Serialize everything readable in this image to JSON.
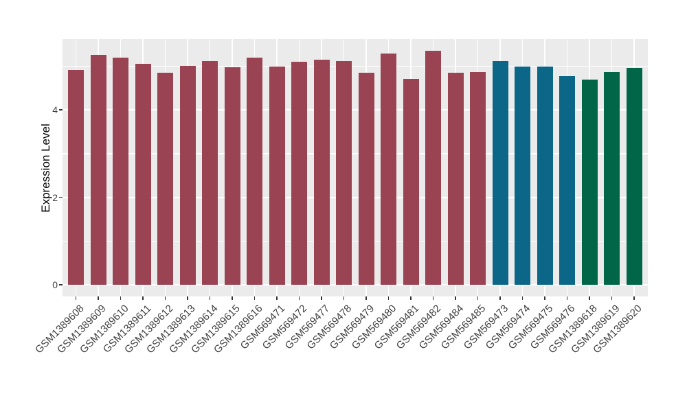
{
  "chart_data": {
    "type": "bar",
    "title": "",
    "xlabel": "",
    "ylabel": "Expression Level",
    "yticks": [
      0,
      2,
      4
    ],
    "ytick_labels": [
      "0",
      "2",
      "4"
    ],
    "ylim": [
      0,
      5.62
    ],
    "grid": true,
    "legend": false,
    "plot_background": "#EBEBEB",
    "gridline_color": "#FFFFFF",
    "axis_text_color": "#404040",
    "bars": [
      {
        "label": "GSM1389608",
        "value": 4.91,
        "color": "#9A4352"
      },
      {
        "label": "GSM1389609",
        "value": 5.25,
        "color": "#9A4352"
      },
      {
        "label": "GSM1389610",
        "value": 5.2,
        "color": "#9A4352"
      },
      {
        "label": "GSM1389611",
        "value": 5.05,
        "color": "#9A4352"
      },
      {
        "label": "GSM1389612",
        "value": 4.84,
        "color": "#9A4352"
      },
      {
        "label": "GSM1389613",
        "value": 5.01,
        "color": "#9A4352"
      },
      {
        "label": "GSM1389614",
        "value": 5.11,
        "color": "#9A4352"
      },
      {
        "label": "GSM1389615",
        "value": 4.97,
        "color": "#9A4352"
      },
      {
        "label": "GSM1389616",
        "value": 5.19,
        "color": "#9A4352"
      },
      {
        "label": "GSM569471",
        "value": 4.99,
        "color": "#9A4352"
      },
      {
        "label": "GSM569472",
        "value": 5.1,
        "color": "#9A4352"
      },
      {
        "label": "GSM569477",
        "value": 5.15,
        "color": "#9A4352"
      },
      {
        "label": "GSM569478",
        "value": 5.12,
        "color": "#9A4352"
      },
      {
        "label": "GSM569479",
        "value": 4.85,
        "color": "#9A4352"
      },
      {
        "label": "GSM569480",
        "value": 5.29,
        "color": "#9A4352"
      },
      {
        "label": "GSM569481",
        "value": 4.71,
        "color": "#9A4352"
      },
      {
        "label": "GSM569482",
        "value": 5.35,
        "color": "#9A4352"
      },
      {
        "label": "GSM569484",
        "value": 4.85,
        "color": "#9A4352"
      },
      {
        "label": "GSM569485",
        "value": 4.86,
        "color": "#9A4352"
      },
      {
        "label": "GSM569473",
        "value": 5.11,
        "color": "#0B6687"
      },
      {
        "label": "GSM569474",
        "value": 4.99,
        "color": "#0B6687"
      },
      {
        "label": "GSM569475",
        "value": 4.99,
        "color": "#0B6687"
      },
      {
        "label": "GSM569476",
        "value": 4.77,
        "color": "#0B6687"
      },
      {
        "label": "GSM1389618",
        "value": 4.69,
        "color": "#006647"
      },
      {
        "label": "GSM1389619",
        "value": 4.87,
        "color": "#006647"
      },
      {
        "label": "GSM1389620",
        "value": 4.95,
        "color": "#006647"
      }
    ],
    "color_groups": [
      {
        "color": "#9A4352",
        "first": "GSM1389608",
        "last": "GSM569485",
        "count": 19
      },
      {
        "color": "#0B6687",
        "first": "GSM569473",
        "last": "GSM569476",
        "count": 4
      },
      {
        "color": "#006647",
        "first": "GSM1389618",
        "last": "GSM1389620",
        "count": 3
      }
    ]
  }
}
